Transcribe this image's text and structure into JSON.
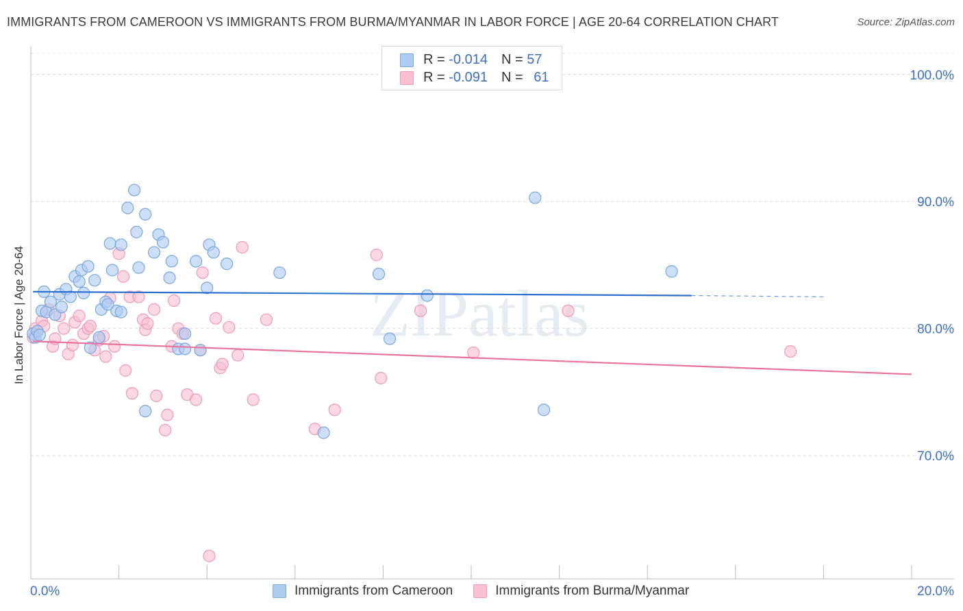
{
  "title": "IMMIGRANTS FROM CAMEROON VS IMMIGRANTS FROM BURMA/MYANMAR IN LABOR FORCE | AGE 20-64 CORRELATION CHART",
  "source": "Source: ZipAtlas.com",
  "watermark": "ZIPatlas",
  "legend": {
    "series1": {
      "r_label": "R =",
      "r_value": "-0.014",
      "n_label": "N =",
      "n_value": "57"
    },
    "series2": {
      "r_label": "R =",
      "r_value": "-0.091",
      "n_label": "N =",
      "n_value": "61"
    }
  },
  "colors": {
    "blue_fill": "#aecbf0",
    "blue_stroke": "#7aa6e0",
    "blue_line": "#2f6fcf",
    "pink_fill": "#f8c0d2",
    "pink_stroke": "#ec9ab6",
    "pink_line": "#e8739b",
    "tick_text": "#3b6fc6"
  },
  "chart_data": {
    "type": "scatter",
    "title": "IMMIGRANTS FROM CAMEROON VS IMMIGRANTS FROM BURMA/MYANMAR IN LABOR FORCE | AGE 20-64 CORRELATION CHART",
    "xlabel": "",
    "ylabel": "In Labor Force | Age 20-64",
    "xlim": [
      0,
      20
    ],
    "ylim": [
      60.3,
      102.2
    ],
    "x_tick_labels": [
      "0.0%",
      "20.0%"
    ],
    "y_ticks": [
      100,
      90,
      80,
      70
    ],
    "y_tick_labels": [
      "100.0%",
      "90.0%",
      "80.0%",
      "70.0%"
    ],
    "series": [
      {
        "name": "Immigrants from Cameroon",
        "color": "blue",
        "trend": {
          "x0": 0.05,
          "y0": 82.9,
          "x1": 15.0,
          "y1": 82.6,
          "dash_to": 18.0,
          "dash_y": 82.5
        },
        "points": [
          [
            0.05,
            79.6
          ],
          [
            0.1,
            79.3
          ],
          [
            0.15,
            79.8
          ],
          [
            0.25,
            81.4
          ],
          [
            0.3,
            82.9
          ],
          [
            0.35,
            81.3
          ],
          [
            0.45,
            82.1
          ],
          [
            0.55,
            81.1
          ],
          [
            0.65,
            82.7
          ],
          [
            0.7,
            81.7
          ],
          [
            0.8,
            83.1
          ],
          [
            0.9,
            82.5
          ],
          [
            1.0,
            84.1
          ],
          [
            1.1,
            83.7
          ],
          [
            1.15,
            84.6
          ],
          [
            1.2,
            82.8
          ],
          [
            1.3,
            84.9
          ],
          [
            1.35,
            78.5
          ],
          [
            1.45,
            83.8
          ],
          [
            1.55,
            79.3
          ],
          [
            1.6,
            81.5
          ],
          [
            1.7,
            82.1
          ],
          [
            1.75,
            81.9
          ],
          [
            1.8,
            86.7
          ],
          [
            1.85,
            84.6
          ],
          [
            1.95,
            81.4
          ],
          [
            2.05,
            86.6
          ],
          [
            2.05,
            81.3
          ],
          [
            2.2,
            89.5
          ],
          [
            2.35,
            90.9
          ],
          [
            2.4,
            87.6
          ],
          [
            2.45,
            84.8
          ],
          [
            2.6,
            89.0
          ],
          [
            2.6,
            73.5
          ],
          [
            2.8,
            86.0
          ],
          [
            2.9,
            87.4
          ],
          [
            3.0,
            86.8
          ],
          [
            3.15,
            84.0
          ],
          [
            3.2,
            85.3
          ],
          [
            3.35,
            78.4
          ],
          [
            3.5,
            79.6
          ],
          [
            3.5,
            78.4
          ],
          [
            3.75,
            85.3
          ],
          [
            3.85,
            78.3
          ],
          [
            4.0,
            83.2
          ],
          [
            4.05,
            86.6
          ],
          [
            4.15,
            86.0
          ],
          [
            4.45,
            85.1
          ],
          [
            5.65,
            84.4
          ],
          [
            6.65,
            71.8
          ],
          [
            7.9,
            84.3
          ],
          [
            8.15,
            79.2
          ],
          [
            9.0,
            82.6
          ],
          [
            11.45,
            90.3
          ],
          [
            11.65,
            73.6
          ],
          [
            14.55,
            84.5
          ],
          [
            0.2,
            79.5
          ]
        ]
      },
      {
        "name": "Immigrants from Burma/Myanmar",
        "color": "pink",
        "trend": {
          "x0": 0.05,
          "y0": 79.0,
          "x1": 20.0,
          "y1": 76.4
        },
        "points": [
          [
            0.05,
            79.3
          ],
          [
            0.1,
            80.0
          ],
          [
            0.15,
            79.8
          ],
          [
            0.25,
            80.6
          ],
          [
            0.3,
            80.2
          ],
          [
            0.4,
            81.5
          ],
          [
            0.5,
            78.6
          ],
          [
            0.55,
            79.2
          ],
          [
            0.65,
            81.0
          ],
          [
            0.75,
            80.0
          ],
          [
            0.85,
            78.0
          ],
          [
            0.95,
            78.7
          ],
          [
            1.0,
            80.5
          ],
          [
            1.1,
            81.0
          ],
          [
            1.2,
            79.6
          ],
          [
            1.3,
            80.0
          ],
          [
            1.35,
            80.2
          ],
          [
            1.45,
            78.3
          ],
          [
            1.55,
            79.1
          ],
          [
            1.65,
            79.4
          ],
          [
            1.7,
            77.8
          ],
          [
            1.8,
            82.4
          ],
          [
            1.9,
            78.6
          ],
          [
            2.0,
            85.9
          ],
          [
            2.1,
            84.1
          ],
          [
            2.15,
            76.7
          ],
          [
            2.25,
            82.5
          ],
          [
            2.3,
            74.9
          ],
          [
            2.45,
            82.5
          ],
          [
            2.55,
            80.7
          ],
          [
            2.6,
            79.9
          ],
          [
            2.65,
            80.4
          ],
          [
            2.8,
            81.5
          ],
          [
            2.85,
            74.7
          ],
          [
            3.05,
            72.0
          ],
          [
            3.1,
            73.2
          ],
          [
            3.2,
            78.6
          ],
          [
            3.25,
            82.2
          ],
          [
            3.35,
            80.0
          ],
          [
            3.45,
            79.6
          ],
          [
            3.55,
            74.8
          ],
          [
            3.75,
            74.4
          ],
          [
            3.85,
            78.3
          ],
          [
            3.9,
            84.4
          ],
          [
            4.05,
            62.1
          ],
          [
            4.2,
            80.8
          ],
          [
            4.3,
            76.9
          ],
          [
            4.35,
            77.2
          ],
          [
            4.5,
            80.1
          ],
          [
            4.7,
            77.9
          ],
          [
            4.8,
            86.4
          ],
          [
            5.05,
            74.4
          ],
          [
            5.35,
            80.7
          ],
          [
            6.45,
            72.1
          ],
          [
            6.9,
            73.6
          ],
          [
            7.85,
            85.8
          ],
          [
            7.95,
            76.1
          ],
          [
            8.85,
            81.4
          ],
          [
            10.05,
            78.1
          ],
          [
            12.2,
            81.4
          ],
          [
            17.25,
            78.2
          ]
        ]
      }
    ]
  }
}
